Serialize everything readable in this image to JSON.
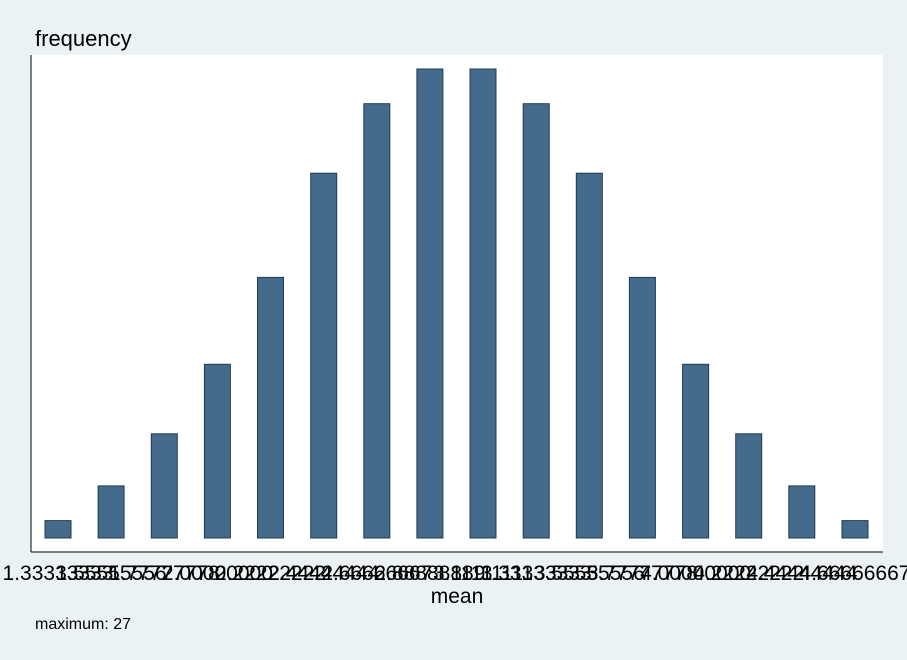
{
  "chart_data": {
    "type": "bar",
    "title": "",
    "ylabel": "frequency",
    "xlabel": "mean",
    "note": "maximum: 27",
    "categories": [
      "1.33333333",
      "1.55555556",
      "1.77777778",
      "2.00000000",
      "2.22222222",
      "2.44444444",
      "2.66666667",
      "2.88888889",
      "3.11111111",
      "3.33333333",
      "3.55555556",
      "3.77777778",
      "4.00000000",
      "4.22222222",
      "4.44444444",
      "4.66666667"
    ],
    "values": [
      1,
      3,
      6,
      10,
      15,
      21,
      25,
      27,
      27,
      25,
      21,
      15,
      10,
      6,
      3,
      1
    ],
    "ylim": [
      0,
      27
    ],
    "grid": false,
    "colors": {
      "bar_fill": "#456b8c",
      "bar_stroke": "#1f3b52",
      "plot_bg": "#ffffff",
      "page_bg": "#eaf2f3",
      "axis": "#000000"
    }
  }
}
